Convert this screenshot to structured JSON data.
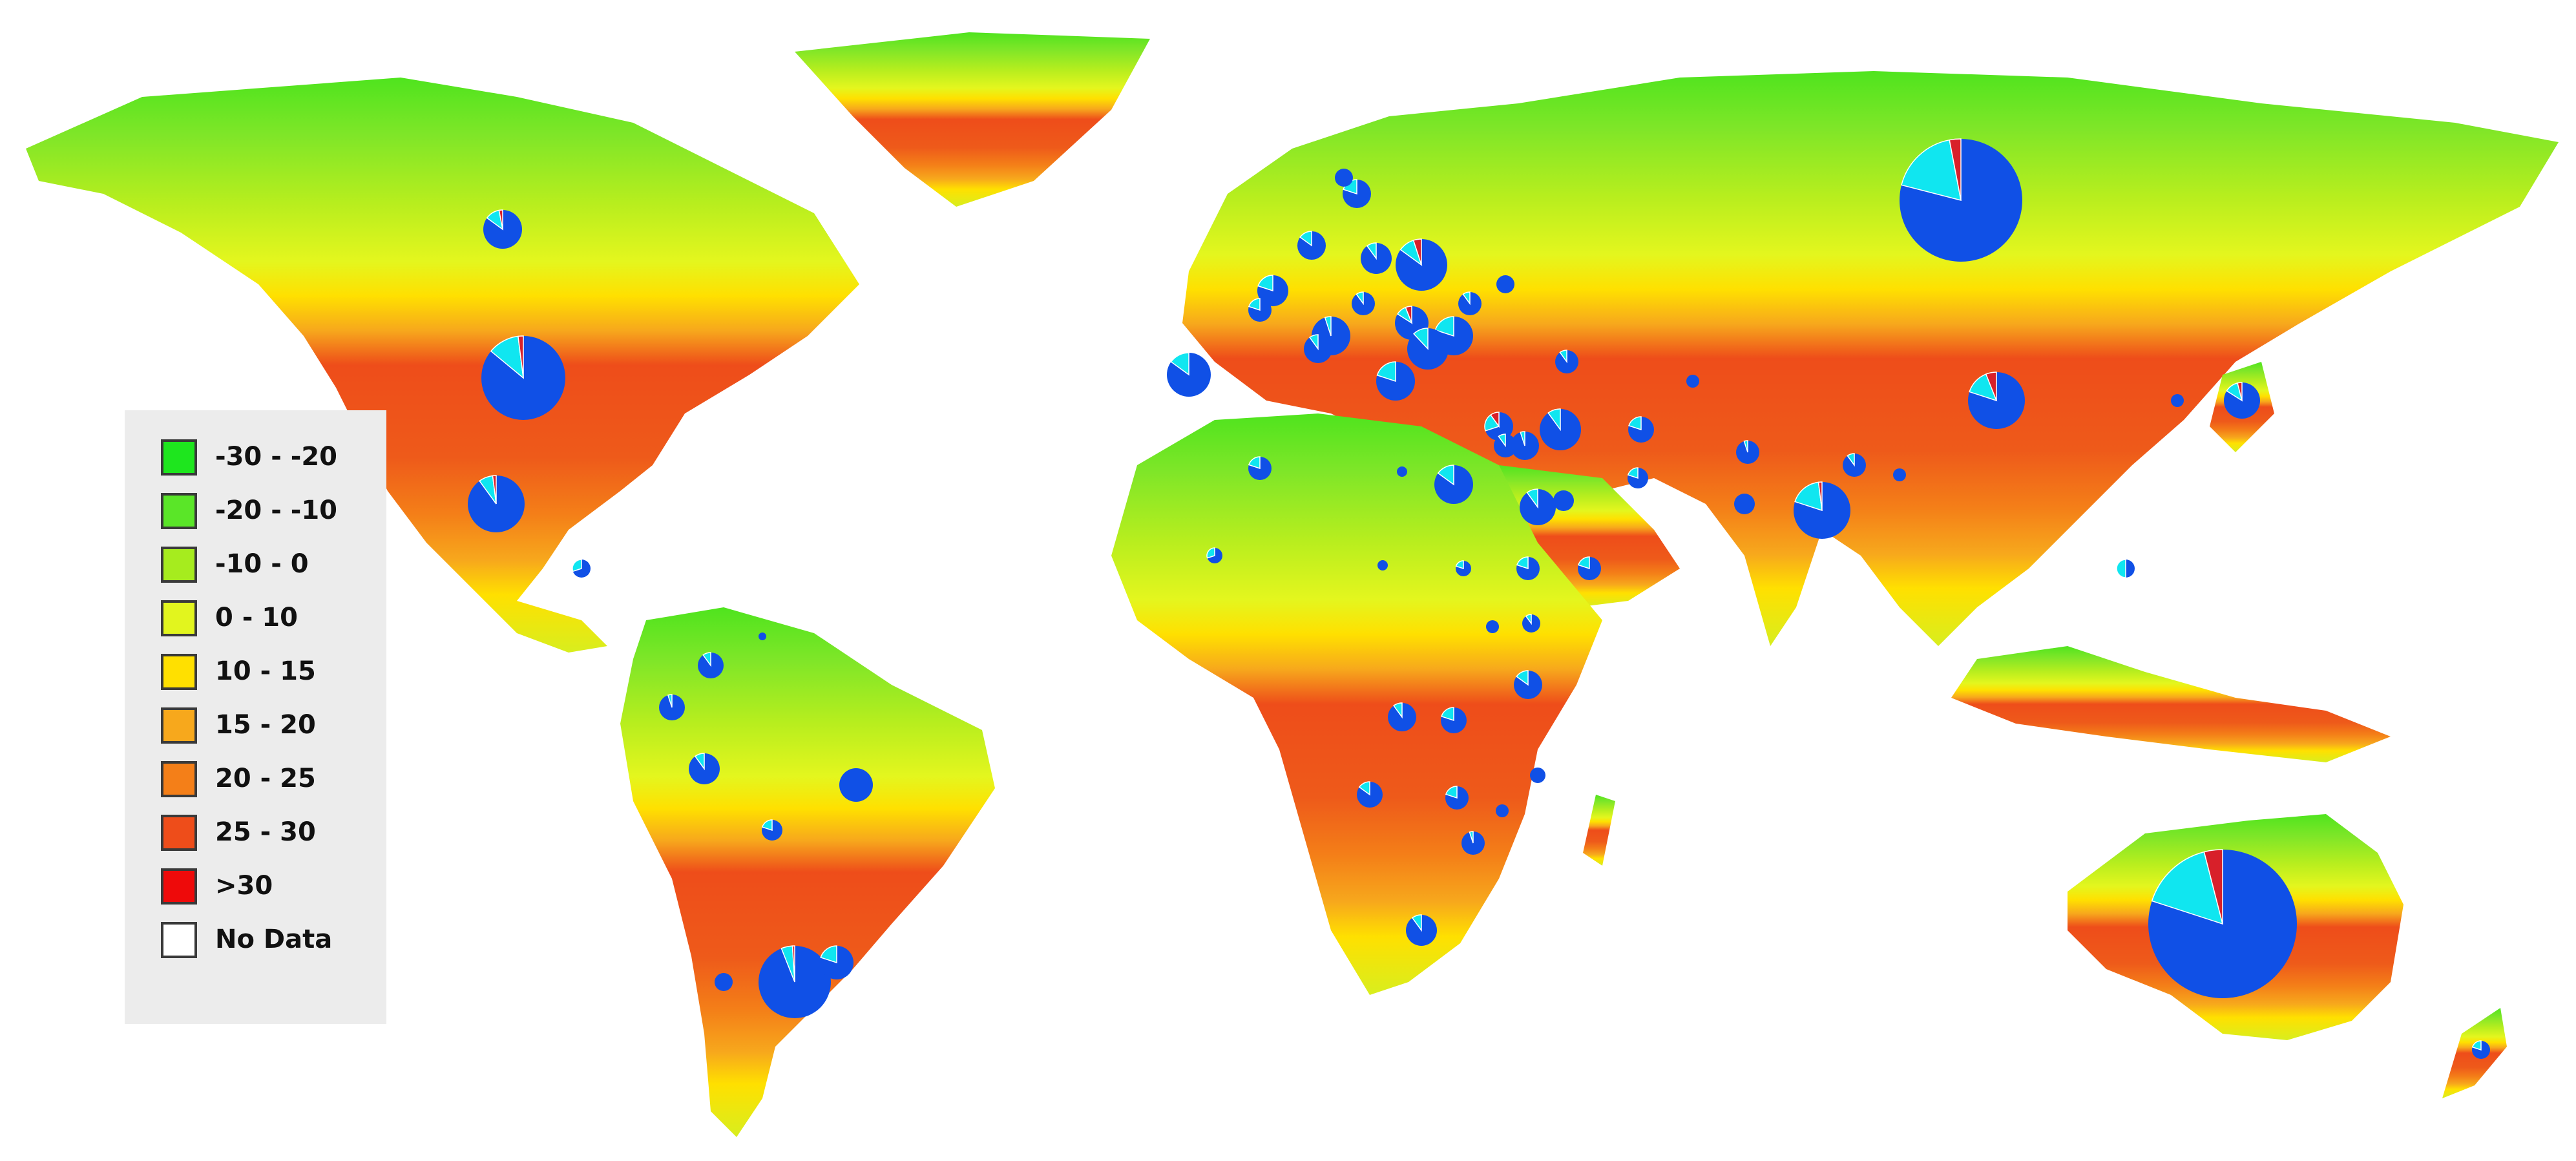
{
  "legend": {
    "items": [
      {
        "label": "-30 - -20",
        "color": "#1ee61e"
      },
      {
        "label": "-20 - -10",
        "color": "#5ae628"
      },
      {
        "label": "-10 - 0",
        "color": "#a6ec1e"
      },
      {
        "label": "0 - 10",
        "color": "#e2f51e"
      },
      {
        "label": "10 - 15",
        "color": "#ffe000"
      },
      {
        "label": "15 - 20",
        "color": "#f7a81c"
      },
      {
        "label": "20 - 25",
        "color": "#f47f18"
      },
      {
        "label": "25 - 30",
        "color": "#ee4d1a"
      },
      {
        "label": ">30",
        "color": "#ee0a0a"
      },
      {
        "label": "No Data",
        "color": "#ffffff"
      }
    ]
  },
  "pie_colors": {
    "primary": "#1050e6",
    "secondary": "#10e6f0",
    "tertiary": "#d8202a"
  }
}
